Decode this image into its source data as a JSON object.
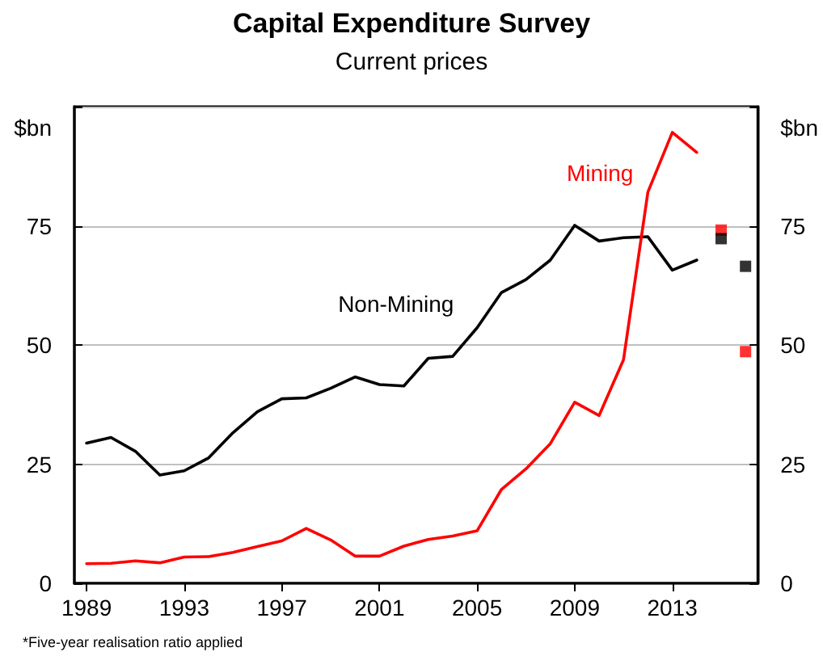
{
  "chart_data": {
    "type": "line",
    "title": "Capital Expenditure Survey",
    "subtitle": "Current prices",
    "ylabel": "$bn",
    "y2label": "$bn",
    "annotations": [
      "*Five-year realisation ratio applied"
    ],
    "xlim": [
      1988.5,
      2016.5
    ],
    "xticks": [
      1989,
      1993,
      1997,
      2001,
      2005,
      2009,
      2013
    ],
    "ylim": [
      0,
      100
    ],
    "yticks": [
      0,
      25,
      50,
      75,
      {
        "value": 100,
        "label": null
      }
    ],
    "y2lim": [
      0,
      100
    ],
    "y2ticks": [
      0,
      25,
      50,
      75,
      {
        "value": 100,
        "label": null
      }
    ],
    "grid": "y",
    "marker": "none",
    "line_style": "solid",
    "series": [
      {
        "name": "Non-Mining",
        "color": "#000000",
        "x": [
          1989,
          1990,
          1991,
          1992,
          1993,
          1994,
          1995,
          1996,
          1997,
          1998,
          1999,
          2000,
          2001,
          2002,
          2003,
          2004,
          2005,
          2006,
          2007,
          2008,
          2009,
          2010,
          2011,
          2012,
          2013,
          2014
        ],
        "values": [
          29.4,
          30.6,
          27.7,
          22.7,
          23.6,
          26.3,
          31.6,
          36.0,
          38.7,
          38.9,
          40.9,
          43.3,
          41.7,
          41.4,
          47.2,
          47.6,
          53.6,
          61.0,
          63.7,
          67.8,
          75.1,
          71.8,
          72.5,
          72.7,
          65.7,
          67.8
        ]
      },
      {
        "name": "Mining",
        "color": "#ff0000",
        "x": [
          1989,
          1990,
          1991,
          1992,
          1993,
          1994,
          1995,
          1996,
          1997,
          1998,
          1999,
          2000,
          2001,
          2002,
          2003,
          2004,
          2005,
          2006,
          2007,
          2008,
          2009,
          2010,
          2011,
          2012,
          2013,
          2014
        ],
        "values": [
          4.1,
          4.2,
          4.7,
          4.3,
          5.5,
          5.6,
          6.5,
          7.7,
          8.9,
          11.5,
          9.1,
          5.7,
          5.7,
          7.8,
          9.2,
          9.9,
          11.0,
          19.7,
          24.0,
          29.3,
          38.0,
          35.2,
          46.9,
          82.1,
          94.6,
          90.4
        ]
      },
      {
        "type": "scatter",
        "marker": "square",
        "color": "#ff0000",
        "x": [
          2015,
          2016
        ],
        "values": [
          74.1,
          48.6
        ]
      },
      {
        "type": "scatter",
        "marker": "square",
        "color": "#000000",
        "x": [
          2015,
          2016
        ],
        "values": [
          72.3,
          66.5
        ]
      }
    ]
  }
}
